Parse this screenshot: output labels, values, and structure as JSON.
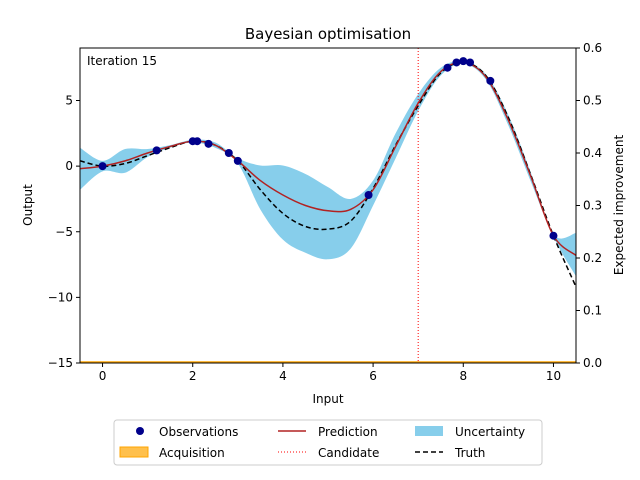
{
  "chart_data": {
    "type": "line",
    "title": "Bayesian optimisation",
    "xlabel": "Input",
    "ylabel": "Output",
    "y2label": "Expected improvement",
    "annotation": "Iteration 15",
    "xlim": [
      -0.5,
      10.5
    ],
    "ylim": [
      -15,
      9
    ],
    "y2lim": [
      0,
      0.6
    ],
    "xticks": [
      0,
      2,
      4,
      6,
      8,
      10
    ],
    "yticks": [
      5,
      0,
      -5,
      -10,
      -15
    ],
    "y2ticks": [
      "0.0",
      "0.1",
      "0.2",
      "0.3",
      "0.4",
      "0.5",
      "0.6"
    ],
    "candidate_x": 7.0,
    "colors": {
      "observations": "#00008b",
      "prediction": "#b22222",
      "uncertainty": "#87ceeb",
      "acquisition": "#ffa500",
      "candidate": "#ff0000",
      "truth": "#000000"
    },
    "observations": {
      "x": [
        0.0,
        1.2,
        2.0,
        2.1,
        2.35,
        2.8,
        3.0,
        5.9,
        7.65,
        7.85,
        8.0,
        8.15,
        8.6,
        10.0
      ],
      "y": [
        0.0,
        1.2,
        1.9,
        1.9,
        1.7,
        1.0,
        0.4,
        -2.2,
        7.5,
        7.9,
        8.0,
        7.9,
        6.5,
        -5.3
      ]
    },
    "prediction": {
      "x": [
        -0.5,
        0,
        0.5,
        1,
        1.5,
        2,
        2.5,
        3,
        3.5,
        4,
        4.5,
        5,
        5.5,
        6,
        6.5,
        7,
        7.5,
        8,
        8.5,
        9,
        9.5,
        10,
        10.5
      ],
      "y": [
        -0.2,
        0.0,
        0.4,
        1.0,
        1.5,
        1.9,
        1.6,
        0.4,
        -1.1,
        -2.2,
        -3.0,
        -3.4,
        -3.3,
        -1.8,
        1.5,
        4.8,
        7.2,
        7.9,
        6.8,
        3.5,
        -0.8,
        -5.3,
        -6.8
      ]
    },
    "uncertainty_upper": [
      1.4,
      0.4,
      1.3,
      1.3,
      1.6,
      2.0,
      1.8,
      0.6,
      0.05,
      0.05,
      -0.6,
      -1.6,
      -2.5,
      -1.1,
      2.5,
      5.5,
      7.5,
      8.0,
      7.0,
      3.9,
      -0.5,
      -5.2,
      -5.1
    ],
    "uncertainty_lower": [
      -1.8,
      -0.4,
      -0.5,
      0.7,
      1.4,
      1.8,
      1.4,
      0.2,
      -3.3,
      -5.6,
      -6.6,
      -7.1,
      -6.3,
      -3.0,
      0.6,
      4.2,
      6.9,
      7.8,
      6.6,
      3.1,
      -1.2,
      -5.4,
      -8.4
    ],
    "truth": {
      "x": [
        -0.5,
        0,
        0.5,
        1,
        1.5,
        2,
        2.5,
        3,
        3.5,
        4,
        4.5,
        5,
        5.5,
        6,
        6.5,
        7,
        7.5,
        8,
        8.5,
        9,
        9.5,
        10,
        10.5
      ],
      "y": [
        0.4,
        0.0,
        0.2,
        0.8,
        1.4,
        1.9,
        1.6,
        0.4,
        -1.8,
        -3.6,
        -4.6,
        -4.8,
        -4.2,
        -1.7,
        1.6,
        4.6,
        7.1,
        7.9,
        6.9,
        3.7,
        -0.7,
        -5.3,
        -9.2
      ]
    },
    "acquisition": {
      "x": [
        -0.5,
        10.5
      ],
      "y": [
        0.0,
        0.0
      ]
    },
    "legend": {
      "placement": "bottom-center",
      "entries": [
        {
          "key": "observations",
          "label": "Observations"
        },
        {
          "key": "acquisition",
          "label": "Acquisition"
        },
        {
          "key": "prediction",
          "label": "Prediction"
        },
        {
          "key": "candidate",
          "label": "Candidate"
        },
        {
          "key": "uncertainty",
          "label": "Uncertainty"
        },
        {
          "key": "truth",
          "label": "Truth"
        }
      ]
    }
  }
}
